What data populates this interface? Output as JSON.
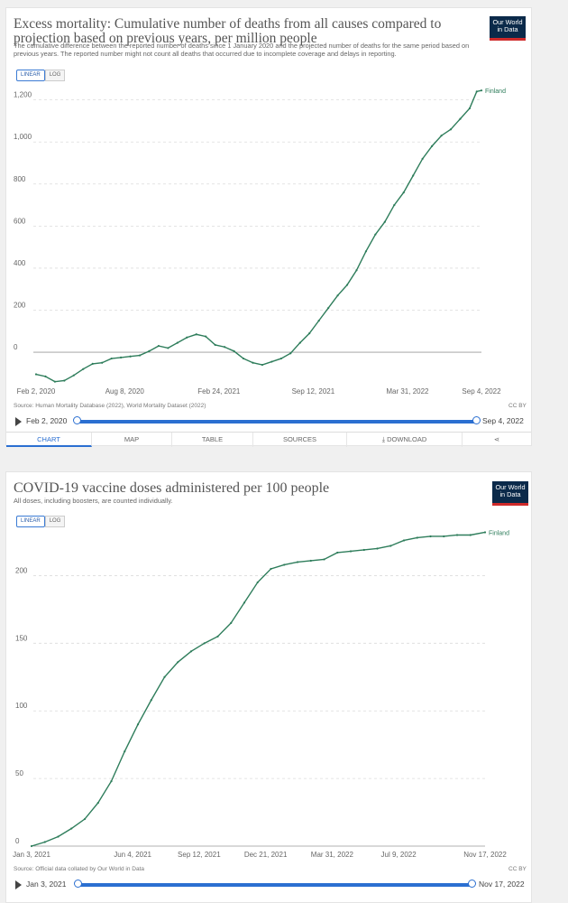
{
  "chart1": {
    "title": "Excess mortality: Cumulative number of deaths from all causes compared to projection based on previous years, per million people",
    "subtitle": "The cumulative difference between the reported number of deaths since 1 January 2020 and the projected number of deaths for the same period based on previous years. The reported number might not count all deaths that occurred due to incomplete coverage and delays in reporting.",
    "logo": "Our World in Data",
    "toggle": [
      "LINEAR",
      "LOG"
    ],
    "source": "Source: Human Mortality Database (2022), World Mortality Dataset (2022)",
    "license": "CC BY",
    "timeline": {
      "start": "Feb 2, 2020",
      "end": "Sep 4, 2022"
    },
    "tabs": [
      "CHART",
      "MAP",
      "TABLE",
      "SOURCES",
      "DOWNLOAD"
    ],
    "colors": {
      "series": "#2e7d5b",
      "accent": "#2b6fd1"
    }
  },
  "chart2": {
    "title": "COVID-19 vaccine doses administered per 100 people",
    "subtitle": "All doses, including boosters, are counted individually.",
    "logo": "Our World in Data",
    "toggle": [
      "LINEAR",
      "LOG"
    ],
    "source": "Source: Official data collated by Our World in Data",
    "license": "CC BY",
    "timeline": {
      "start": "Jan 3, 2021",
      "end": "Nov 17, 2022"
    }
  },
  "chart_data": [
    {
      "type": "line",
      "title": "Excess mortality: Cumulative number of deaths from all causes compared to projection based on previous years, per million people",
      "xlabel": "",
      "ylabel": "",
      "ylim": [
        -150,
        1250
      ],
      "yticks": [
        0,
        200,
        400,
        600,
        800,
        1000,
        1200
      ],
      "ytick_labels": [
        "0",
        "200",
        "400",
        "600",
        "800",
        "1,000",
        "1,200"
      ],
      "xticks": [
        0,
        188,
        388,
        588,
        788,
        945
      ],
      "xtick_labels": [
        "Feb 2, 2020",
        "Aug 8, 2020",
        "Feb 24, 2021",
        "Sep 12, 2021",
        "Mar 31, 2022",
        "Sep 4, 2022"
      ],
      "xlim": [
        0,
        945
      ],
      "series": [
        {
          "name": "Finland",
          "x": [
            0,
            20,
            40,
            60,
            80,
            100,
            120,
            140,
            160,
            180,
            200,
            220,
            240,
            260,
            280,
            300,
            320,
            340,
            360,
            380,
            400,
            420,
            440,
            460,
            480,
            500,
            520,
            540,
            560,
            580,
            600,
            620,
            640,
            660,
            680,
            700,
            720,
            740,
            760,
            780,
            800,
            820,
            840,
            860,
            880,
            900,
            920,
            935,
            945
          ],
          "values": [
            -105,
            -115,
            -140,
            -135,
            -110,
            -80,
            -55,
            -50,
            -30,
            -25,
            -20,
            -15,
            5,
            30,
            20,
            45,
            70,
            85,
            75,
            35,
            25,
            5,
            -30,
            -50,
            -60,
            -45,
            -30,
            -5,
            45,
            90,
            150,
            210,
            270,
            320,
            390,
            480,
            560,
            620,
            700,
            760,
            840,
            920,
            980,
            1030,
            1060,
            1110,
            1160,
            1240,
            1245
          ]
        }
      ]
    },
    {
      "type": "line",
      "title": "COVID-19 vaccine doses administered per 100 people",
      "xlabel": "",
      "ylabel": "",
      "ylim": [
        0,
        235
      ],
      "yticks": [
        0,
        50,
        100,
        150,
        200
      ],
      "ytick_labels": [
        "0",
        "50",
        "100",
        "150",
        "200"
      ],
      "xticks": [
        0,
        152,
        252,
        352,
        452,
        552,
        682
      ],
      "xtick_labels": [
        "Jan 3, 2021",
        "Jun 4, 2021",
        "Sep 12, 2021",
        "Dec 21, 2021",
        "Mar 31, 2022",
        "Jul 9, 2022",
        "Nov 17, 2022"
      ],
      "xlim": [
        0,
        682
      ],
      "series": [
        {
          "name": "Finland",
          "x": [
            0,
            20,
            40,
            60,
            80,
            100,
            120,
            140,
            160,
            180,
            200,
            220,
            240,
            260,
            280,
            300,
            320,
            340,
            360,
            380,
            400,
            420,
            440,
            460,
            480,
            500,
            520,
            540,
            560,
            580,
            600,
            620,
            640,
            660,
            682
          ],
          "values": [
            0,
            3,
            7,
            13,
            20,
            32,
            48,
            70,
            90,
            108,
            125,
            136,
            144,
            150,
            155,
            165,
            180,
            195,
            205,
            208,
            210,
            211,
            212,
            217,
            218,
            219,
            220,
            222,
            226,
            228,
            229,
            229,
            230,
            230,
            232
          ]
        }
      ]
    }
  ]
}
